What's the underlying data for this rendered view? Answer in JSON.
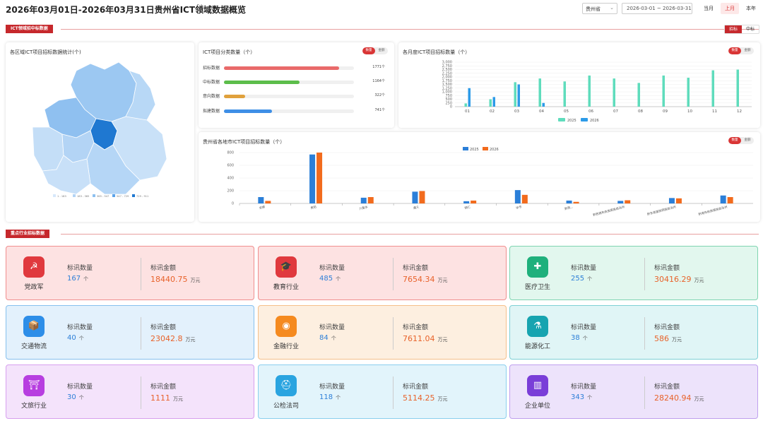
{
  "header": {
    "title": "2026年03月01日-2026年03月31日贵州省ICT领域数据概览",
    "region": "贵州省",
    "date_range": "2026-03-01 ~ 2026-03-31",
    "periods": [
      "当月",
      "上月",
      "本年"
    ],
    "active_period": "上月"
  },
  "section1": {
    "label": "ICT领域招中标数据",
    "tabs": [
      "招标",
      "中标"
    ]
  },
  "map_panel": {
    "title": "各区域ICT项目招标数据统计(个)",
    "legend": [
      "1 - 183",
      "183 - 365",
      "365 - 547",
      "547 - 729",
      "729 - 911"
    ],
    "legend_colors": [
      "#d6e8fb",
      "#b3d4f5",
      "#8ec0f0",
      "#5ba3ea",
      "#1f78d1"
    ]
  },
  "category_panel": {
    "title": "ICT项目分类数量（个）",
    "toggle": [
      "数量",
      "金额"
    ],
    "items": [
      {
        "label": "招标数据",
        "value": 1771,
        "display": "1771个",
        "color": "#e96a6a"
      },
      {
        "label": "中标数据",
        "value": 1164,
        "display": "1164个",
        "color": "#5cbd4a"
      },
      {
        "label": "意向数据",
        "value": 322,
        "display": "322个",
        "color": "#e0a13c"
      },
      {
        "label": "拟建数据",
        "value": 741,
        "display": "741个",
        "color": "#3e8fe6"
      }
    ]
  },
  "monthly_panel": {
    "title": "各月度ICT项目招标数量（个）",
    "toggle": [
      "数量",
      "金额"
    ]
  },
  "city_panel": {
    "title": "贵州省各地市ICT项目招标数量（个）",
    "toggle": [
      "数量",
      "金额"
    ]
  },
  "chart_data": [
    {
      "type": "bar",
      "title": "各月度ICT项目招标数量（个）",
      "categories": [
        "01",
        "02",
        "03",
        "04",
        "05",
        "06",
        "07",
        "08",
        "09",
        "10",
        "11",
        "12"
      ],
      "series": [
        {
          "name": "2025",
          "color": "#5fdcbc",
          "values": [
            220,
            500,
            1650,
            1900,
            1700,
            2100,
            1900,
            1600,
            2100,
            1950,
            2450,
            2500
          ]
        },
        {
          "name": "2026",
          "color": "#2d9be8",
          "values": [
            1250,
            650,
            1500,
            250,
            0,
            0,
            0,
            0,
            0,
            0,
            0,
            0
          ]
        }
      ],
      "yticks": [
        "0",
        "250",
        "500",
        "750",
        "1,000",
        "1,250",
        "1,500",
        "1,750",
        "2,000",
        "2,250",
        "2,500",
        "2,750",
        "3,000"
      ],
      "ylim": [
        0,
        3000
      ]
    },
    {
      "type": "bar",
      "title": "贵州省各地市ICT项目招标数量（个）",
      "categories": [
        "安顺",
        "贵阳",
        "六盘水",
        "遵义",
        "铜仁",
        "毕节",
        "黔西...",
        "黔西南布依族苗族自治州",
        "黔东南苗族侗族自治州",
        "黔南布依族苗族自治州"
      ],
      "series": [
        {
          "name": "2025",
          "color": "#2b7fd8",
          "values": [
            100,
            770,
            90,
            185,
            35,
            210,
            45,
            40,
            85,
            125
          ]
        },
        {
          "name": "2026",
          "color": "#f26b1d",
          "values": [
            40,
            800,
            100,
            195,
            45,
            135,
            25,
            50,
            80,
            100
          ]
        }
      ],
      "yticks": [
        "0",
        "200",
        "400",
        "600",
        "800"
      ],
      "ylim": [
        0,
        800
      ]
    }
  ],
  "section2": {
    "label": "重点行业招标数据"
  },
  "industries": [
    {
      "name": "党政军",
      "count_label": "标讯数量",
      "count": "167",
      "count_unit": "个",
      "amount_label": "标讯金额",
      "amount": "18440.75",
      "amount_unit": "万元",
      "icon": "party-emblem-icon",
      "glyph": "☭",
      "icon_color": "#e0393e",
      "bg": "#fde2e2",
      "border": "#f08e8e"
    },
    {
      "name": "教育行业",
      "count_label": "标讯数量",
      "count": "485",
      "count_unit": "个",
      "amount_label": "标讯金额",
      "amount": "7654.34",
      "amount_unit": "万元",
      "icon": "graduation-cap-icon",
      "glyph": "🎓",
      "icon_color": "#e0393e",
      "bg": "#fde2e2",
      "border": "#f08e8e"
    },
    {
      "name": "医疗卫生",
      "count_label": "标讯数量",
      "count": "255",
      "count_unit": "个",
      "amount_label": "标讯金额",
      "amount": "30416.29",
      "amount_unit": "万元",
      "icon": "medical-cross-icon",
      "glyph": "✚",
      "icon_color": "#1fb07c",
      "bg": "#e2f7ee",
      "border": "#7fd4b0"
    },
    {
      "name": "交通物流",
      "count_label": "标讯数量",
      "count": "40",
      "count_unit": "个",
      "amount_label": "标讯金额",
      "amount": "23042.8",
      "amount_unit": "万元",
      "icon": "logistics-box-icon",
      "glyph": "📦",
      "icon_color": "#2d8ee8",
      "bg": "#e3f1fc",
      "border": "#86c0ee"
    },
    {
      "name": "金融行业",
      "count_label": "标讯数量",
      "count": "84",
      "count_unit": "个",
      "amount_label": "标讯金额",
      "amount": "7611.04",
      "amount_unit": "万元",
      "icon": "coin-icon",
      "glyph": "◉",
      "icon_color": "#f58a1f",
      "bg": "#fdefe0",
      "border": "#f5c08a"
    },
    {
      "name": "能源化工",
      "count_label": "标讯数量",
      "count": "38",
      "count_unit": "个",
      "amount_label": "标讯金额",
      "amount": "586",
      "amount_unit": "万元",
      "icon": "flask-icon",
      "glyph": "⚗",
      "icon_color": "#17a4b0",
      "bg": "#e0f5f6",
      "border": "#7ed0d5"
    },
    {
      "name": "文旅行业",
      "count_label": "标讯数量",
      "count": "30",
      "count_unit": "个",
      "amount_label": "标讯金额",
      "amount": "1111",
      "amount_unit": "万元",
      "icon": "temple-icon",
      "glyph": "⛩",
      "icon_color": "#b73ee0",
      "bg": "#f4e3fb",
      "border": "#d7a0ee"
    },
    {
      "name": "公检法司",
      "count_label": "标讯数量",
      "count": "118",
      "count_unit": "个",
      "amount_label": "标讯金额",
      "amount": "5114.25",
      "amount_unit": "万元",
      "icon": "police-cap-icon",
      "glyph": "⛑",
      "icon_color": "#2aa4e0",
      "bg": "#e2f4fb",
      "border": "#8acfee"
    },
    {
      "name": "企业单位",
      "count_label": "标讯数量",
      "count": "343",
      "count_unit": "个",
      "amount_label": "标讯金额",
      "amount": "28240.94",
      "amount_unit": "万元",
      "icon": "building-icon",
      "glyph": "▥",
      "icon_color": "#7a3ed8",
      "bg": "#ede3fb",
      "border": "#bfa0ee"
    }
  ]
}
